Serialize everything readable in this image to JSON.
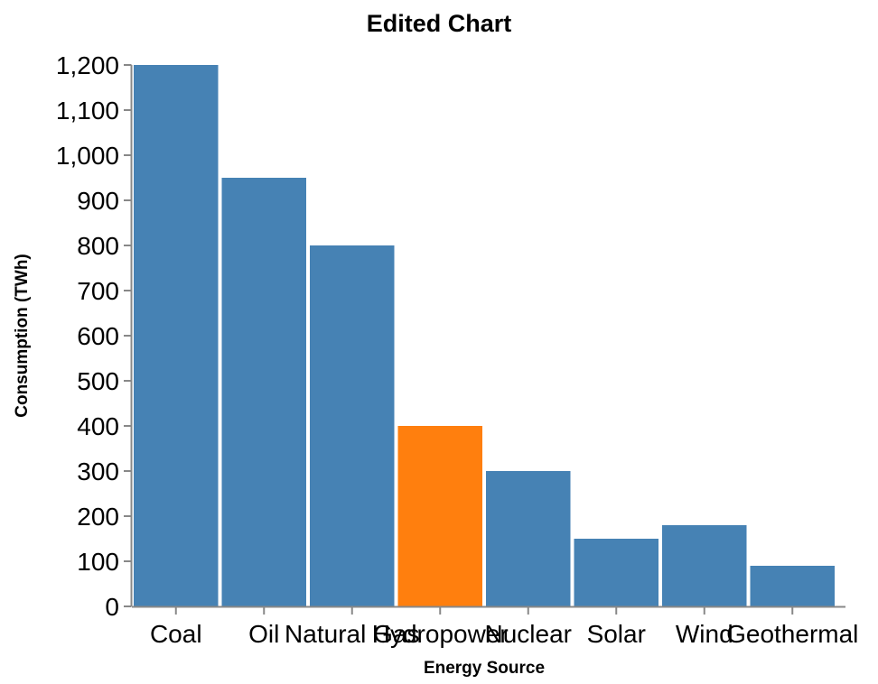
{
  "chart_data": {
    "type": "bar",
    "title": "Edited Chart",
    "xlabel": "Energy Source",
    "ylabel": "Consumption (TWh)",
    "categories": [
      "Coal",
      "Oil",
      "Natural Gas",
      "Hydropower",
      "Nuclear",
      "Solar",
      "Wind",
      "Geothermal"
    ],
    "values": [
      1200,
      950,
      800,
      400,
      300,
      150,
      180,
      90
    ],
    "ylim": [
      0,
      1200
    ],
    "yticks": [
      0,
      100,
      200,
      300,
      400,
      500,
      600,
      700,
      800,
      900,
      1000,
      1100,
      1200
    ],
    "ytick_labels": [
      "0",
      "100",
      "200",
      "300",
      "400",
      "500",
      "600",
      "700",
      "800",
      "900",
      "1,000",
      "1,100",
      "1,200"
    ],
    "colors": {
      "default": "#4682b4",
      "highlight": "#ff7f0e",
      "axis": "#888888"
    },
    "highlight_category": "Hydropower",
    "grid": false,
    "legend": "none"
  }
}
